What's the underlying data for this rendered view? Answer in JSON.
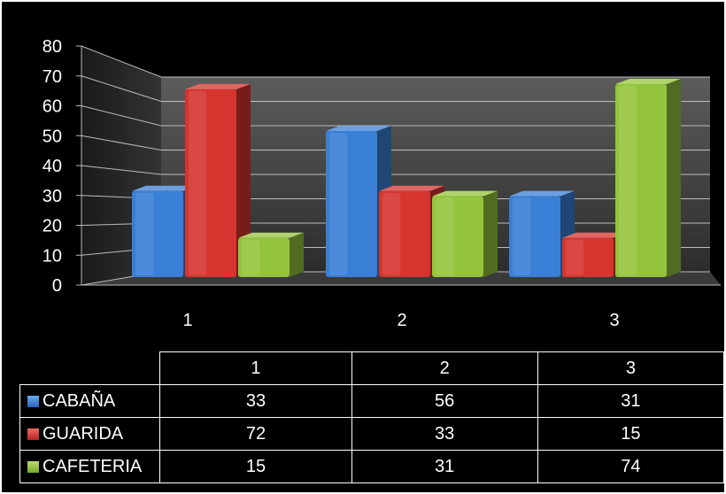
{
  "chart_data": {
    "type": "bar",
    "categories": [
      "1",
      "2",
      "3"
    ],
    "series": [
      {
        "name": "CABAÑA",
        "values": [
          33,
          56,
          31
        ],
        "color": "#3a7fd6"
      },
      {
        "name": "GUARIDA",
        "values": [
          72,
          33,
          15
        ],
        "color": "#d6342e"
      },
      {
        "name": "CAFETERIA",
        "values": [
          15,
          31,
          74
        ],
        "color": "#94c43c"
      }
    ],
    "ylim": [
      0,
      80
    ],
    "yticks": [
      "0",
      "10",
      "20",
      "30",
      "40",
      "50",
      "60",
      "70",
      "80"
    ],
    "grid": true,
    "style": "3d-clustered-column",
    "legend": "data-table-below"
  },
  "table": {
    "headers": [
      "1",
      "2",
      "3"
    ],
    "rows": [
      {
        "label": "CABAÑA",
        "cells": [
          "33",
          "56",
          "31"
        ]
      },
      {
        "label": "GUARIDA",
        "cells": [
          "72",
          "33",
          "15"
        ]
      },
      {
        "label": "CAFETERIA",
        "cells": [
          "15",
          "31",
          "74"
        ]
      }
    ]
  }
}
